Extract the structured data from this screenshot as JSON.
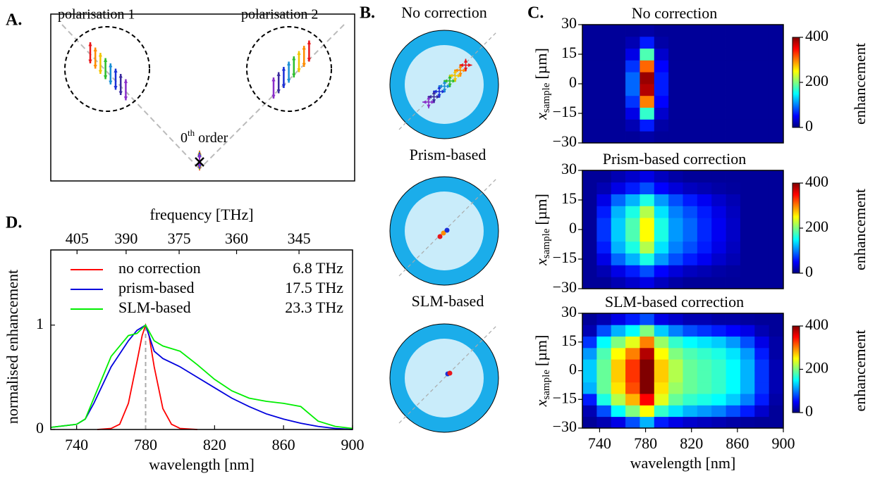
{
  "panel_labels": {
    "a": "A.",
    "b": "B.",
    "c": "C.",
    "d": "D."
  },
  "diagram_a": {
    "left_label": "polarisation 1",
    "right_label": "polarisation 2",
    "order_number": "0",
    "order_suffix": "th",
    "order_word": "order"
  },
  "diagram_b": {
    "titles": [
      "No correction",
      "Prism-based",
      "SLM-based"
    ]
  },
  "chart_data": [
    {
      "type": "line",
      "xlabel": "wavelength [nm]",
      "ylabel": "normalised enhancement",
      "x2label": "frequency [THz]",
      "xlim": [
        725,
        900
      ],
      "ylim": [
        0,
        1.72
      ],
      "xticks": [
        740,
        780,
        820,
        860,
        900
      ],
      "yticks": [
        0,
        1
      ],
      "x2ticks": [
        405,
        390,
        375,
        360,
        345
      ],
      "vline": 780,
      "legend": "upper left",
      "series": [
        {
          "name": "no correction",
          "bandwidth": "6.8 THz",
          "color": "#ff0000",
          "x": [
            752,
            760,
            765,
            770,
            775,
            778,
            780,
            782,
            785,
            790,
            795,
            800,
            810
          ],
          "values": [
            0,
            0.01,
            0.05,
            0.25,
            0.65,
            0.9,
            1,
            0.9,
            0.6,
            0.2,
            0.05,
            0.01,
            0
          ]
        },
        {
          "name": "prism-based",
          "bandwidth": "17.5 THz",
          "color": "#0000dd",
          "x": [
            725,
            740,
            745,
            750,
            760,
            770,
            775,
            780,
            785,
            790,
            800,
            810,
            820,
            830,
            840,
            850,
            860,
            870,
            880,
            890,
            900
          ],
          "values": [
            0.02,
            0.05,
            0.1,
            0.25,
            0.6,
            0.85,
            0.95,
            1,
            0.75,
            0.68,
            0.6,
            0.5,
            0.4,
            0.3,
            0.22,
            0.15,
            0.1,
            0.06,
            0.03,
            0.01,
            0
          ]
        },
        {
          "name": "SLM-based",
          "bandwidth": "23.3 THz",
          "color": "#00ee00",
          "x": [
            725,
            740,
            745,
            750,
            760,
            770,
            775,
            780,
            785,
            790,
            800,
            810,
            820,
            830,
            840,
            850,
            860,
            870,
            875,
            880,
            890,
            900
          ],
          "values": [
            0.02,
            0.05,
            0.1,
            0.3,
            0.7,
            0.9,
            0.92,
            1,
            0.85,
            0.8,
            0.75,
            0.62,
            0.48,
            0.37,
            0.3,
            0.27,
            0.25,
            0.22,
            0.15,
            0.08,
            0.03,
            0.01
          ]
        }
      ]
    },
    {
      "type": "heatmap",
      "title": "No correction",
      "ylabel": {
        "symbol": "x",
        "subscript": "sample",
        "unit": "[µm]"
      },
      "xlim": [
        725,
        900
      ],
      "ylim": [
        -30,
        30
      ],
      "yticks": [
        {
          "value": -30,
          "label": "−30"
        },
        {
          "value": -15,
          "label": "−15"
        },
        0,
        15,
        30
      ],
      "clim": [
        0,
        400
      ],
      "cticks": [
        0,
        200,
        400
      ],
      "clabel": "enhancement",
      "x_bins": [
        725,
        737.5,
        750,
        762.5,
        775,
        787.5,
        800,
        812.5,
        825,
        837.5,
        850,
        862.5,
        875,
        887.5,
        900
      ],
      "y_bins": [
        -30,
        -24,
        -18,
        -12,
        -6,
        0,
        6,
        12,
        18,
        24,
        30
      ],
      "z": [
        [
          10,
          10,
          10,
          10,
          10,
          10,
          10,
          10,
          10,
          10
        ],
        [
          10,
          10,
          10,
          10,
          10,
          10,
          10,
          10,
          10,
          10
        ],
        [
          10,
          10,
          10,
          10,
          10,
          10,
          10,
          10,
          10,
          10
        ],
        [
          10,
          20,
          40,
          70,
          90,
          90,
          70,
          40,
          20,
          10
        ],
        [
          15,
          60,
          170,
          300,
          380,
          390,
          310,
          180,
          60,
          15
        ],
        [
          10,
          15,
          30,
          50,
          60,
          60,
          50,
          30,
          15,
          10
        ],
        [
          10,
          10,
          10,
          10,
          10,
          10,
          10,
          10,
          10,
          10
        ],
        [
          10,
          10,
          10,
          10,
          10,
          10,
          10,
          10,
          10,
          10
        ],
        [
          10,
          10,
          10,
          10,
          10,
          10,
          10,
          10,
          10,
          10
        ],
        [
          10,
          10,
          10,
          10,
          10,
          10,
          10,
          10,
          10,
          10
        ],
        [
          10,
          10,
          10,
          10,
          10,
          10,
          10,
          10,
          10,
          10
        ],
        [
          10,
          10,
          10,
          10,
          10,
          10,
          10,
          10,
          10,
          10
        ],
        [
          10,
          10,
          10,
          10,
          10,
          10,
          10,
          10,
          10,
          10
        ],
        [
          10,
          10,
          10,
          10,
          10,
          10,
          10,
          10,
          10,
          10
        ]
      ]
    },
    {
      "type": "heatmap",
      "title": "Prism-based correction",
      "ylabel": {
        "symbol": "x",
        "subscript": "sample",
        "unit": "[µm]"
      },
      "xlim": [
        725,
        900
      ],
      "ylim": [
        -30,
        30
      ],
      "yticks": [
        {
          "value": -30,
          "label": "−30"
        },
        {
          "value": -15,
          "label": "−15"
        },
        0,
        15,
        30
      ],
      "clim": [
        0,
        400
      ],
      "cticks": [
        0,
        200,
        400
      ],
      "clabel": "enhancement",
      "x_bins": [
        725,
        737.5,
        750,
        762.5,
        775,
        787.5,
        800,
        812.5,
        825,
        837.5,
        850,
        862.5,
        875,
        887.5,
        900
      ],
      "y_bins": [
        -30,
        -24,
        -18,
        -12,
        -6,
        0,
        6,
        12,
        18,
        24,
        30
      ],
      "z": [
        [
          10,
          10,
          10,
          10,
          10,
          10,
          10,
          10,
          10,
          10
        ],
        [
          10,
          20,
          40,
          60,
          70,
          70,
          60,
          40,
          20,
          10
        ],
        [
          20,
          40,
          90,
          120,
          130,
          130,
          120,
          90,
          40,
          20
        ],
        [
          30,
          60,
          120,
          160,
          180,
          180,
          160,
          120,
          60,
          30
        ],
        [
          40,
          80,
          160,
          220,
          250,
          250,
          220,
          160,
          80,
          40
        ],
        [
          25,
          50,
          110,
          140,
          160,
          160,
          140,
          110,
          50,
          25
        ],
        [
          15,
          35,
          80,
          100,
          110,
          110,
          100,
          80,
          35,
          15
        ],
        [
          10,
          25,
          60,
          80,
          90,
          90,
          80,
          60,
          25,
          10
        ],
        [
          10,
          20,
          45,
          60,
          65,
          65,
          60,
          45,
          20,
          10
        ],
        [
          10,
          15,
          30,
          40,
          45,
          45,
          40,
          30,
          15,
          10
        ],
        [
          10,
          12,
          20,
          25,
          28,
          28,
          25,
          20,
          12,
          10
        ],
        [
          10,
          10,
          10,
          10,
          10,
          10,
          10,
          10,
          10,
          10
        ],
        [
          10,
          10,
          10,
          10,
          10,
          10,
          10,
          10,
          10,
          10
        ],
        [
          10,
          10,
          10,
          10,
          10,
          10,
          10,
          10,
          10,
          10
        ]
      ]
    },
    {
      "type": "heatmap",
      "title": "SLM-based correction",
      "ylabel": {
        "symbol": "x",
        "subscript": "sample",
        "unit": "[µm]"
      },
      "xlim": [
        725,
        900
      ],
      "ylim": [
        -30,
        30
      ],
      "yticks": [
        {
          "value": -30,
          "label": "−30"
        },
        {
          "value": -15,
          "label": "−15"
        },
        0,
        15,
        30
      ],
      "xticks": [
        740,
        780,
        820,
        860,
        900
      ],
      "xlabel": "wavelength [nm]",
      "clim": [
        0,
        400
      ],
      "cticks": [
        0,
        200,
        400
      ],
      "clabel": "enhancement",
      "x_bins": [
        725,
        737.5,
        750,
        762.5,
        775,
        787.5,
        800,
        812.5,
        825,
        837.5,
        850,
        862.5,
        875,
        887.5,
        900
      ],
      "y_bins": [
        -30,
        -24,
        -18,
        -12,
        -6,
        0,
        6,
        12,
        18,
        24,
        30
      ],
      "z": [
        [
          10,
          20,
          60,
          120,
          130,
          130,
          110,
          70,
          20,
          10
        ],
        [
          20,
          80,
          160,
          190,
          190,
          190,
          180,
          150,
          80,
          20
        ],
        [
          40,
          150,
          220,
          260,
          270,
          270,
          250,
          200,
          120,
          40
        ],
        [
          80,
          200,
          280,
          320,
          330,
          330,
          300,
          240,
          150,
          60
        ],
        [
          120,
          250,
          350,
          400,
          400,
          400,
          380,
          300,
          200,
          80
        ],
        [
          60,
          170,
          240,
          260,
          270,
          270,
          250,
          210,
          130,
          40
        ],
        [
          40,
          140,
          190,
          210,
          220,
          220,
          200,
          170,
          100,
          30
        ],
        [
          30,
          120,
          170,
          190,
          190,
          190,
          180,
          150,
          80,
          20
        ],
        [
          25,
          110,
          160,
          180,
          180,
          180,
          170,
          140,
          70,
          20
        ],
        [
          20,
          100,
          150,
          170,
          170,
          170,
          160,
          130,
          60,
          15
        ],
        [
          15,
          80,
          130,
          150,
          150,
          150,
          140,
          110,
          50,
          15
        ],
        [
          12,
          60,
          100,
          120,
          120,
          120,
          110,
          80,
          40,
          12
        ],
        [
          10,
          30,
          60,
          70,
          70,
          70,
          60,
          40,
          20,
          10
        ],
        [
          10,
          10,
          15,
          20,
          20,
          20,
          15,
          15,
          10,
          10
        ]
      ]
    }
  ]
}
